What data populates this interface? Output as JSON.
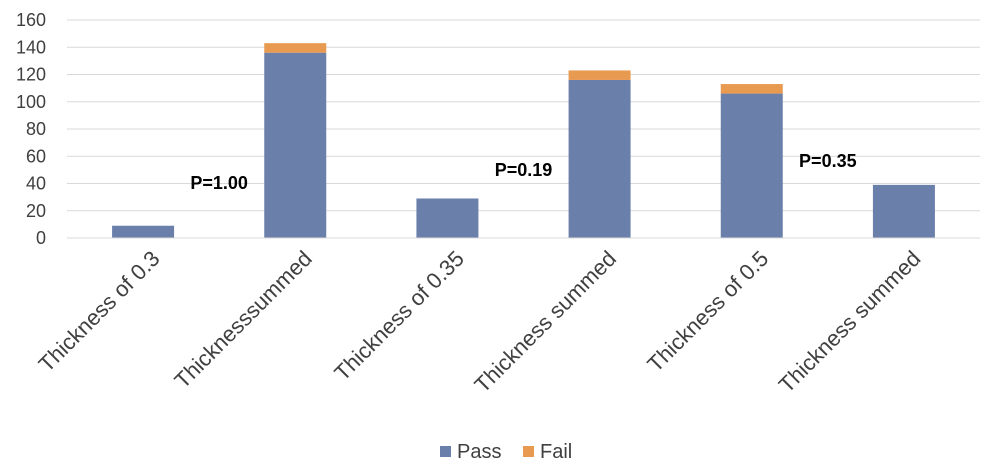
{
  "chart_data": {
    "type": "bar",
    "stacked": true,
    "categories": [
      "Thickness of 0.3",
      "Thicknesssummed",
      "Thickness of 0.35",
      "Thickness summed",
      "Thickness of 0.5",
      "Thickness summed"
    ],
    "series": [
      {
        "name": "Pass",
        "color": "#6a80ab",
        "values": [
          9,
          136,
          29,
          116,
          106,
          39
        ]
      },
      {
        "name": "Fail",
        "color": "#e89a50",
        "values": [
          0,
          7,
          0,
          7,
          7,
          0
        ]
      }
    ],
    "ylim": [
      0,
      160
    ],
    "yticks": [
      "0",
      "20",
      "40",
      "60",
      "80",
      "100",
      "120",
      "140",
      "160"
    ],
    "grid": true,
    "legend": "bottom-center",
    "annotations": [
      {
        "text": "P=1.00",
        "after_category": 0
      },
      {
        "text": "P=0.19",
        "after_category": 2
      },
      {
        "text": "P=0.35",
        "after_category": 4
      }
    ]
  }
}
